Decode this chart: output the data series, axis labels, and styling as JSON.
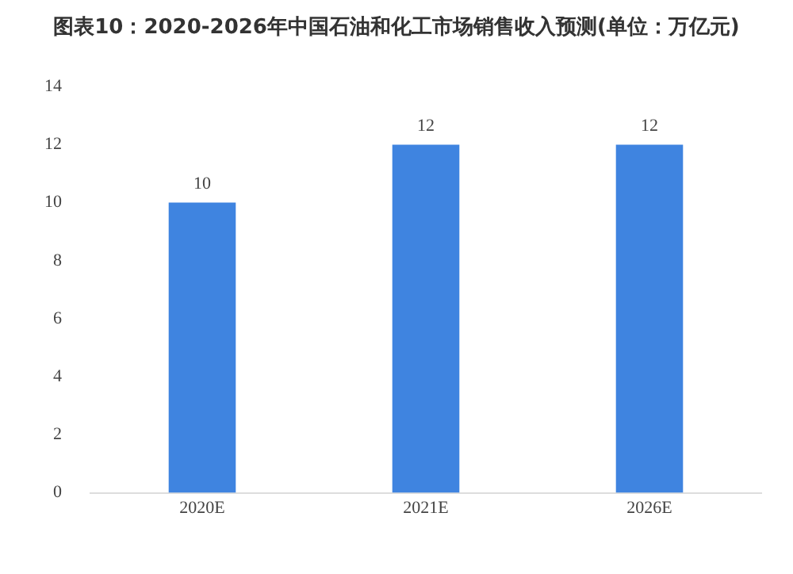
{
  "chart_data": {
    "type": "bar",
    "title": "图表10：2020-2026年中国石油和化工市场销售收入预测(单位：万亿元)",
    "categories": [
      "2020E",
      "2021E",
      "2026E"
    ],
    "values": [
      10,
      12,
      12
    ],
    "color": "#3f84e0",
    "ylim": [
      0,
      14
    ],
    "yticks": [
      0,
      2,
      4,
      6,
      8,
      10,
      12,
      14
    ],
    "grid": false,
    "data_labels": true
  }
}
